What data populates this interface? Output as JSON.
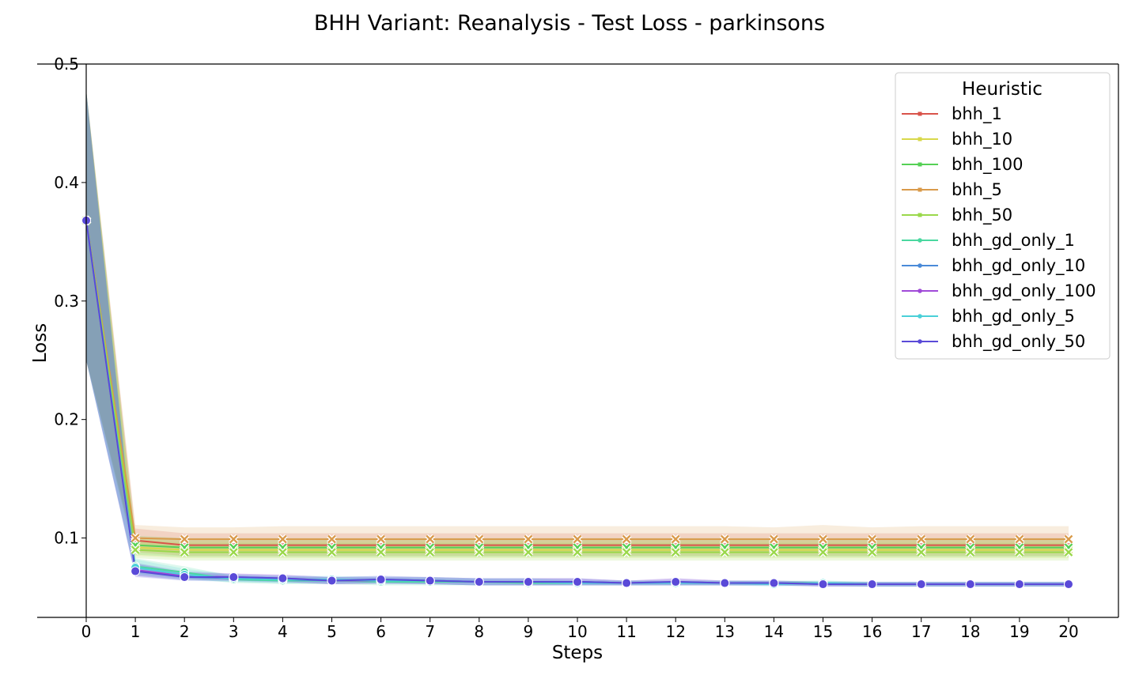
{
  "chart_data": {
    "type": "line",
    "title": "BHH Variant: Reanalysis - Test Loss - parkinsons",
    "xlabel": "Steps",
    "ylabel": "Loss",
    "xlim": [
      -0.3,
      20.8
    ],
    "ylim": [
      0.033,
      0.5
    ],
    "x": [
      0,
      1,
      2,
      3,
      4,
      5,
      6,
      7,
      8,
      9,
      10,
      11,
      12,
      13,
      14,
      15,
      16,
      17,
      18,
      19,
      20
    ],
    "xticks": [
      "0",
      "1",
      "2",
      "3",
      "4",
      "5",
      "6",
      "7",
      "8",
      "9",
      "10",
      "11",
      "12",
      "13",
      "14",
      "15",
      "16",
      "17",
      "18",
      "19",
      "20"
    ],
    "yticks": [
      "0.1",
      "0.2",
      "0.3",
      "0.4",
      "0.5"
    ],
    "ytick_values": [
      0.1,
      0.2,
      0.3,
      0.4,
      0.5
    ],
    "legend": {
      "title": "Heuristic",
      "position": "top-right"
    },
    "grid": false,
    "series": [
      {
        "name": "bhh_1",
        "color": "#d9534a",
        "marker": "x",
        "values": [
          0.368,
          0.098,
          0.094,
          0.094,
          0.094,
          0.094,
          0.094,
          0.094,
          0.094,
          0.094,
          0.094,
          0.094,
          0.094,
          0.094,
          0.094,
          0.094,
          0.094,
          0.094,
          0.094,
          0.094,
          0.094
        ],
        "lower": [
          0.25,
          0.088,
          0.085,
          0.085,
          0.085,
          0.085,
          0.085,
          0.085,
          0.085,
          0.085,
          0.085,
          0.085,
          0.085,
          0.085,
          0.085,
          0.085,
          0.085,
          0.085,
          0.085,
          0.085,
          0.085
        ],
        "upper": [
          0.478,
          0.108,
          0.104,
          0.104,
          0.104,
          0.104,
          0.104,
          0.104,
          0.104,
          0.104,
          0.104,
          0.104,
          0.104,
          0.104,
          0.104,
          0.104,
          0.104,
          0.104,
          0.104,
          0.104,
          0.104
        ]
      },
      {
        "name": "bhh_10",
        "color": "#d8d84a",
        "marker": "x",
        "values": [
          0.368,
          0.092,
          0.09,
          0.09,
          0.09,
          0.09,
          0.09,
          0.09,
          0.09,
          0.09,
          0.09,
          0.09,
          0.09,
          0.09,
          0.09,
          0.09,
          0.09,
          0.09,
          0.09,
          0.09,
          0.09
        ],
        "lower": [
          0.25,
          0.085,
          0.083,
          0.083,
          0.083,
          0.083,
          0.083,
          0.083,
          0.083,
          0.083,
          0.083,
          0.083,
          0.083,
          0.083,
          0.083,
          0.083,
          0.083,
          0.083,
          0.083,
          0.083,
          0.083
        ],
        "upper": [
          0.478,
          0.1,
          0.098,
          0.098,
          0.098,
          0.098,
          0.098,
          0.098,
          0.098,
          0.098,
          0.098,
          0.098,
          0.098,
          0.098,
          0.098,
          0.098,
          0.098,
          0.098,
          0.098,
          0.098,
          0.098
        ]
      },
      {
        "name": "bhh_100",
        "color": "#55d055",
        "marker": "x",
        "values": [
          0.368,
          0.094,
          0.092,
          0.092,
          0.092,
          0.092,
          0.092,
          0.092,
          0.092,
          0.092,
          0.092,
          0.092,
          0.092,
          0.092,
          0.092,
          0.092,
          0.092,
          0.092,
          0.092,
          0.092,
          0.092
        ],
        "lower": [
          0.25,
          0.086,
          0.084,
          0.084,
          0.084,
          0.084,
          0.084,
          0.084,
          0.084,
          0.084,
          0.084,
          0.084,
          0.084,
          0.084,
          0.084,
          0.084,
          0.084,
          0.084,
          0.084,
          0.084,
          0.084
        ],
        "upper": [
          0.478,
          0.102,
          0.1,
          0.1,
          0.1,
          0.1,
          0.1,
          0.1,
          0.1,
          0.1,
          0.1,
          0.1,
          0.1,
          0.1,
          0.1,
          0.1,
          0.1,
          0.1,
          0.1,
          0.1,
          0.1
        ]
      },
      {
        "name": "bhh_5",
        "color": "#d99a4a",
        "marker": "x",
        "values": [
          0.368,
          0.1,
          0.099,
          0.099,
          0.099,
          0.099,
          0.099,
          0.099,
          0.099,
          0.099,
          0.099,
          0.099,
          0.099,
          0.099,
          0.099,
          0.099,
          0.099,
          0.099,
          0.099,
          0.099,
          0.099
        ],
        "lower": [
          0.25,
          0.09,
          0.088,
          0.088,
          0.088,
          0.088,
          0.088,
          0.088,
          0.088,
          0.088,
          0.088,
          0.088,
          0.088,
          0.088,
          0.088,
          0.088,
          0.088,
          0.088,
          0.088,
          0.088,
          0.088
        ],
        "upper": [
          0.478,
          0.111,
          0.109,
          0.109,
          0.11,
          0.11,
          0.11,
          0.11,
          0.11,
          0.11,
          0.11,
          0.11,
          0.11,
          0.11,
          0.109,
          0.111,
          0.109,
          0.11,
          0.11,
          0.11,
          0.11
        ]
      },
      {
        "name": "bhh_50",
        "color": "#9ad84a",
        "marker": "x",
        "values": [
          0.368,
          0.09,
          0.088,
          0.088,
          0.088,
          0.088,
          0.088,
          0.088,
          0.088,
          0.088,
          0.088,
          0.088,
          0.088,
          0.088,
          0.088,
          0.088,
          0.088,
          0.088,
          0.088,
          0.088,
          0.088
        ],
        "lower": [
          0.25,
          0.083,
          0.081,
          0.081,
          0.081,
          0.081,
          0.081,
          0.081,
          0.081,
          0.081,
          0.081,
          0.081,
          0.081,
          0.081,
          0.081,
          0.081,
          0.081,
          0.081,
          0.081,
          0.081,
          0.081
        ],
        "upper": [
          0.478,
          0.098,
          0.096,
          0.096,
          0.096,
          0.096,
          0.096,
          0.096,
          0.096,
          0.096,
          0.096,
          0.096,
          0.096,
          0.096,
          0.096,
          0.096,
          0.096,
          0.096,
          0.096,
          0.096,
          0.096
        ]
      },
      {
        "name": "bhh_gd_only_1",
        "color": "#4ad8a0",
        "marker": "o",
        "values": [
          0.368,
          0.076,
          0.071,
          0.065,
          0.064,
          0.064,
          0.063,
          0.063,
          0.063,
          0.062,
          0.062,
          0.062,
          0.062,
          0.062,
          0.062,
          0.062,
          0.061,
          0.061,
          0.061,
          0.061,
          0.061
        ],
        "lower": [
          0.25,
          0.07,
          0.066,
          0.062,
          0.061,
          0.061,
          0.06,
          0.06,
          0.06,
          0.06,
          0.06,
          0.06,
          0.06,
          0.06,
          0.06,
          0.06,
          0.059,
          0.059,
          0.059,
          0.059,
          0.059
        ],
        "upper": [
          0.478,
          0.083,
          0.076,
          0.068,
          0.067,
          0.067,
          0.066,
          0.066,
          0.065,
          0.064,
          0.064,
          0.064,
          0.064,
          0.064,
          0.064,
          0.064,
          0.063,
          0.063,
          0.063,
          0.063,
          0.063
        ]
      },
      {
        "name": "bhh_gd_only_10",
        "color": "#4a8ad8",
        "marker": "o",
        "values": [
          0.368,
          0.073,
          0.067,
          0.066,
          0.065,
          0.064,
          0.065,
          0.064,
          0.063,
          0.063,
          0.063,
          0.062,
          0.062,
          0.062,
          0.062,
          0.061,
          0.061,
          0.061,
          0.061,
          0.061,
          0.061
        ],
        "lower": [
          0.25,
          0.068,
          0.064,
          0.063,
          0.062,
          0.061,
          0.062,
          0.061,
          0.06,
          0.06,
          0.06,
          0.06,
          0.06,
          0.06,
          0.06,
          0.059,
          0.059,
          0.059,
          0.059,
          0.059,
          0.059
        ],
        "upper": [
          0.478,
          0.079,
          0.071,
          0.069,
          0.068,
          0.067,
          0.068,
          0.067,
          0.066,
          0.066,
          0.066,
          0.064,
          0.064,
          0.064,
          0.064,
          0.063,
          0.063,
          0.063,
          0.063,
          0.063,
          0.063
        ]
      },
      {
        "name": "bhh_gd_only_100",
        "color": "#a04ad8",
        "marker": "o",
        "values": [
          0.368,
          0.073,
          0.068,
          0.067,
          0.066,
          0.064,
          0.064,
          0.064,
          0.063,
          0.063,
          0.063,
          0.062,
          0.063,
          0.062,
          0.062,
          0.061,
          0.061,
          0.061,
          0.061,
          0.061,
          0.061
        ],
        "lower": [
          0.25,
          0.068,
          0.065,
          0.064,
          0.063,
          0.061,
          0.061,
          0.061,
          0.06,
          0.06,
          0.06,
          0.06,
          0.06,
          0.06,
          0.06,
          0.059,
          0.059,
          0.059,
          0.059,
          0.059,
          0.059
        ],
        "upper": [
          0.478,
          0.079,
          0.072,
          0.07,
          0.069,
          0.067,
          0.067,
          0.067,
          0.066,
          0.066,
          0.066,
          0.064,
          0.066,
          0.064,
          0.064,
          0.063,
          0.063,
          0.063,
          0.063,
          0.063,
          0.063
        ]
      },
      {
        "name": "bhh_gd_only_5",
        "color": "#4ad0d8",
        "marker": "o",
        "values": [
          0.368,
          0.075,
          0.069,
          0.066,
          0.065,
          0.065,
          0.064,
          0.064,
          0.063,
          0.063,
          0.062,
          0.062,
          0.062,
          0.062,
          0.061,
          0.062,
          0.061,
          0.061,
          0.061,
          0.061,
          0.061
        ],
        "lower": [
          0.25,
          0.069,
          0.065,
          0.063,
          0.062,
          0.062,
          0.061,
          0.061,
          0.06,
          0.06,
          0.06,
          0.06,
          0.06,
          0.06,
          0.059,
          0.06,
          0.059,
          0.059,
          0.059,
          0.059,
          0.059
        ],
        "upper": [
          0.478,
          0.082,
          0.074,
          0.069,
          0.068,
          0.068,
          0.067,
          0.067,
          0.066,
          0.066,
          0.064,
          0.064,
          0.064,
          0.064,
          0.063,
          0.064,
          0.063,
          0.063,
          0.063,
          0.063,
          0.063
        ]
      },
      {
        "name": "bhh_gd_only_50",
        "color": "#5a4ad8",
        "marker": "o",
        "values": [
          0.368,
          0.072,
          0.067,
          0.067,
          0.066,
          0.064,
          0.065,
          0.064,
          0.063,
          0.063,
          0.063,
          0.062,
          0.063,
          0.062,
          0.062,
          0.061,
          0.061,
          0.061,
          0.061,
          0.061,
          0.061
        ],
        "lower": [
          0.25,
          0.067,
          0.064,
          0.064,
          0.063,
          0.061,
          0.062,
          0.061,
          0.06,
          0.06,
          0.06,
          0.06,
          0.06,
          0.06,
          0.06,
          0.059,
          0.059,
          0.059,
          0.059,
          0.059,
          0.059
        ],
        "upper": [
          0.478,
          0.078,
          0.071,
          0.07,
          0.069,
          0.067,
          0.068,
          0.067,
          0.066,
          0.066,
          0.066,
          0.064,
          0.066,
          0.064,
          0.064,
          0.063,
          0.063,
          0.063,
          0.063,
          0.063,
          0.063
        ]
      }
    ]
  }
}
